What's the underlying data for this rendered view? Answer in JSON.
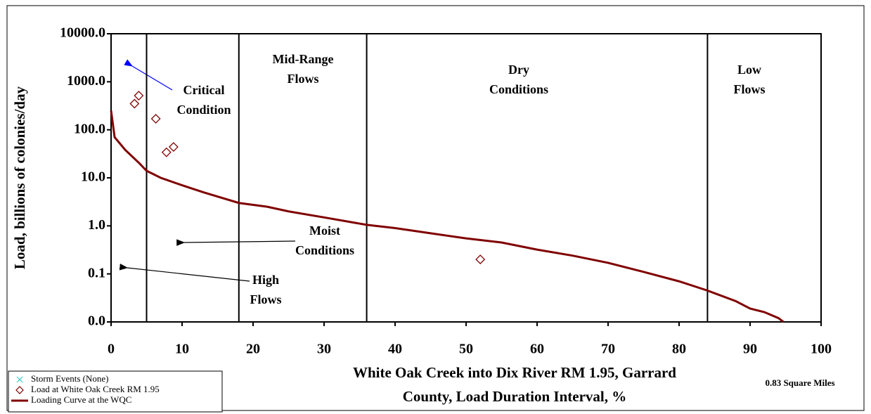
{
  "chart_data": {
    "type": "line",
    "ylabel": "Load, billions of colonies/day",
    "xlabel": [
      "White Oak Creek into Dix River RM 1.95, Garrard",
      "County, Load Duration Interval, %"
    ],
    "note": "0.83 Square Miles",
    "xlim": [
      0,
      100
    ],
    "xticks": [
      0,
      10,
      20,
      30,
      40,
      50,
      60,
      70,
      80,
      90,
      100
    ],
    "ylim": [
      0.01,
      10000
    ],
    "log_y": true,
    "yticks": [
      {
        "value": 0.01,
        "label": "0.0"
      },
      {
        "value": 0.1,
        "label": "0.1"
      },
      {
        "value": 1,
        "label": "1.0"
      },
      {
        "value": 10,
        "label": "10.0"
      },
      {
        "value": 100,
        "label": "100.0"
      },
      {
        "value": 1000,
        "label": "1000.0"
      },
      {
        "value": 10000,
        "label": "10000.0"
      }
    ],
    "zone_boundaries": [
      5,
      18,
      36,
      84
    ],
    "zone_labels": [
      [
        "Mid-Range",
        "Flows"
      ],
      [
        "Dry",
        "Conditions"
      ],
      [
        "Low",
        "Flows"
      ],
      [
        "Moist",
        "Conditions"
      ],
      [
        "High",
        "Flows"
      ]
    ],
    "annotation": [
      "Critical",
      "Condition"
    ],
    "annotation_color": "#0000ff",
    "series": [
      {
        "name": "Storm Events (None)",
        "kind": "cross",
        "color": "#33cccc",
        "x": [],
        "values": []
      },
      {
        "name": "Load at White Oak Creek RM 1.95",
        "kind": "diamond",
        "color": "#800000",
        "x": [
          3.3,
          3.9,
          6.3,
          7.8,
          8.8,
          52
        ],
        "values": [
          350,
          515,
          170,
          34,
          44,
          0.2
        ]
      },
      {
        "name": "Loading Curve at the WQC",
        "kind": "line",
        "color": "#800000",
        "x": [
          0,
          0.5,
          2,
          4,
          5,
          7,
          10,
          13,
          18,
          22,
          25,
          30,
          36,
          40,
          45,
          50,
          55,
          60,
          65,
          70,
          75,
          80,
          84,
          88,
          90,
          92,
          94,
          94.7
        ],
        "values": [
          250,
          70,
          38,
          20,
          14,
          10,
          7,
          5,
          3.0,
          2.5,
          2.0,
          1.5,
          1.05,
          0.9,
          0.7,
          0.55,
          0.45,
          0.32,
          0.24,
          0.17,
          0.11,
          0.07,
          0.045,
          0.027,
          0.019,
          0.016,
          0.012,
          0.01
        ]
      }
    ]
  }
}
